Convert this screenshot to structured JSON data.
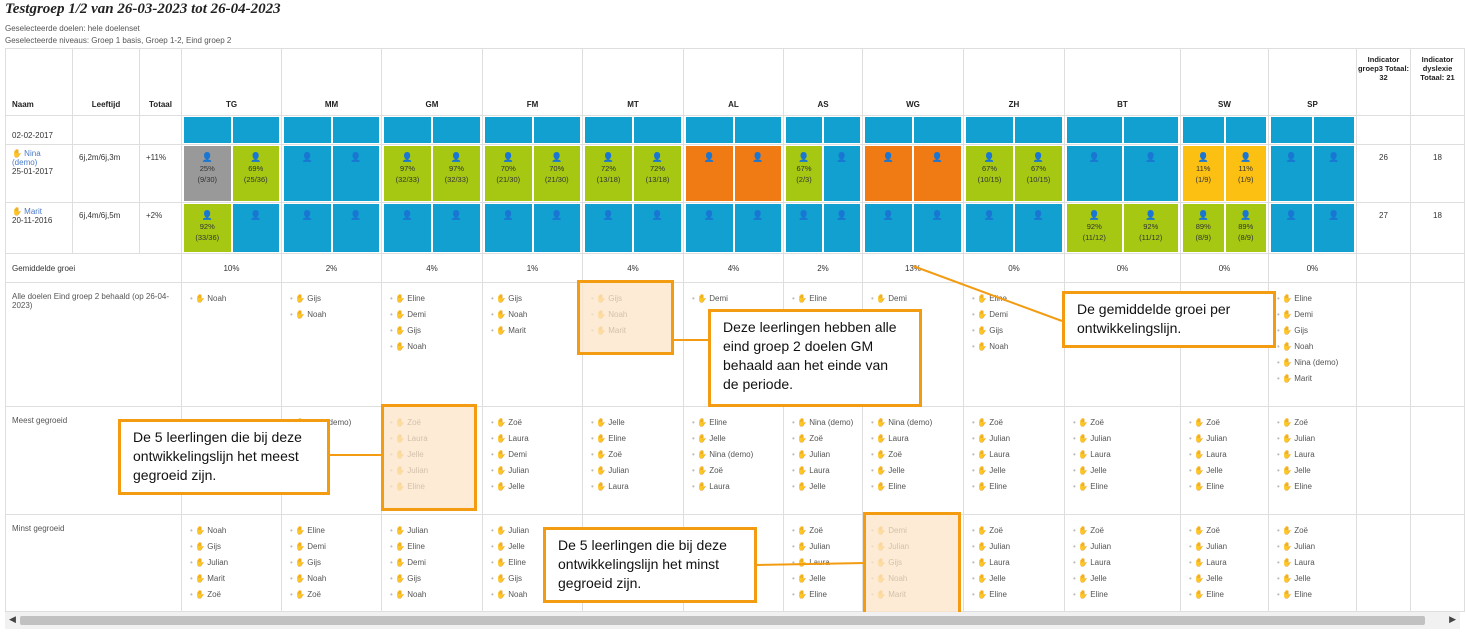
{
  "title": "Testgroep 1/2 van 26-03-2023 tot 26-04-2023",
  "subtitle1": "Geselecteerde doelen: hele doelenset",
  "subtitle2": "Geselecteerde niveaus: Groep 1 basis, Groep 1-2, Eind groep 2",
  "headers": {
    "naam": "Naam",
    "leeftijd": "Leeftijd",
    "totaal": "Totaal",
    "lines": [
      "TG",
      "MM",
      "GM",
      "FM",
      "MT",
      "AL",
      "AS",
      "WG",
      "ZH",
      "BT",
      "SW",
      "SP"
    ],
    "ind1": "Indicator groep3 Totaal: 32",
    "ind2": "Indicator dyslexie Totaal: 21"
  },
  "rows": [
    {
      "name": "",
      "date": "02-02-2017",
      "age": "",
      "total": "",
      "cells": [
        "b",
        "b",
        "b",
        "b",
        "b",
        "b",
        "b",
        "b",
        "b",
        "b",
        "b",
        "b",
        "b",
        "b",
        "b",
        "b",
        "b",
        "b",
        "b",
        "b",
        "b",
        "b",
        "b",
        "b"
      ],
      "i1": "",
      "i2": ""
    },
    {
      "name": "Nina (demo)",
      "date": "25-01-2017",
      "age": "6j,2m/6j,3m",
      "total": "+11%",
      "cells": [
        "gr:25%:(9/30)",
        "g:69%:(25/36)",
        "b",
        "b",
        "g:97%:(32/33)",
        "g:97%:(32/33)",
        "g:70%:(21/30)",
        "g:70%:(21/30)",
        "g:72%:(13/18)",
        "g:72%:(13/18)",
        "o:",
        "o:",
        "g:67%:(2/3)",
        "b",
        "o:",
        "o:",
        "g:67%:(10/15)",
        "g:67%:(10/15)",
        "b",
        "b",
        "y:11%:(1/9)",
        "y:11%:(1/9)",
        "b",
        "b"
      ],
      "i1": "26",
      "i2": "18"
    },
    {
      "name": "Marit",
      "date": "20-11-2016",
      "age": "6j,4m/6j,5m",
      "total": "+2%",
      "cells": [
        "g:92%:(33/36)",
        "b",
        "b",
        "b",
        "b",
        "b",
        "b",
        "b",
        "b",
        "b",
        "b",
        "b",
        "b",
        "b",
        "b",
        "b",
        "b",
        "b",
        "g:92%:(11/12)",
        "g:92%:(11/12)",
        "g:89%:(8/9)",
        "g:89%:(8/9)",
        "b",
        "b"
      ],
      "i1": "27",
      "i2": "18"
    }
  ],
  "growth_label": "Gemiddelde groei",
  "growth": [
    "10%",
    "2%",
    "4%",
    "1%",
    "4%",
    "4%",
    "2%",
    "13%",
    "0%",
    "0%",
    "0%",
    "0%"
  ],
  "achieved_label": "Alle doelen Eind groep 2 behaald (op 26-04-2023)",
  "achieved": [
    [
      "Noah"
    ],
    [
      "Gijs",
      "Noah"
    ],
    [
      "Eline",
      "Demi",
      "Gijs",
      "Noah"
    ],
    [
      "Gijs",
      "Noah",
      "Marit"
    ],
    [
      "Gijs",
      "Noah",
      "Marit"
    ],
    [
      "Demi"
    ],
    [
      "Eline"
    ],
    [
      "Demi"
    ],
    [
      "Eline",
      "Demi",
      "Gijs",
      "Noah"
    ],
    [],
    [],
    [
      "Eline",
      "Demi",
      "Gijs",
      "Noah",
      "Nina (demo)",
      "Marit"
    ]
  ],
  "most_label": "Meest gegroeid",
  "most": [
    [],
    [
      "Nina (demo)"
    ],
    [
      "Zoë",
      "Laura",
      "Jelle",
      "Julian",
      "Eline"
    ],
    [
      "Zoë",
      "Laura",
      "Demi",
      "Julian",
      "Jelle"
    ],
    [
      "Jelle",
      "Eline",
      "Zoë",
      "Julian",
      "Laura"
    ],
    [
      "Eline",
      "Jelle",
      "Nina (demo)",
      "Zoë",
      "Laura"
    ],
    [
      "Nina (demo)",
      "Zoë",
      "Julian",
      "Laura",
      "Jelle"
    ],
    [
      "Nina (demo)",
      "Laura",
      "Zoë",
      "Jelle",
      "Eline"
    ],
    [
      "Zoë",
      "Julian",
      "Laura",
      "Jelle",
      "Eline"
    ],
    [
      "Zoë",
      "Julian",
      "Laura",
      "Jelle",
      "Eline"
    ],
    [
      "Zoë",
      "Julian",
      "Laura",
      "Jelle",
      "Eline"
    ],
    [
      "Zoë",
      "Julian",
      "Laura",
      "Jelle",
      "Eline"
    ]
  ],
  "least_label": "Minst gegroeid",
  "least": [
    [
      "Noah",
      "Gijs",
      "Julian",
      "Marit",
      "Zoë"
    ],
    [
      "Eline",
      "Demi",
      "Gijs",
      "Noah",
      "Zoë"
    ],
    [
      "Julian",
      "Eline",
      "Demi",
      "Gijs",
      "Noah"
    ],
    [
      "Julian",
      "Jelle",
      "Eline",
      "Gijs",
      "Noah"
    ],
    [],
    [],
    [
      "Zoë",
      "Julian",
      "Laura",
      "Jelle",
      "Eline"
    ],
    [
      "Demi",
      "Julian",
      "Gijs",
      "Noah",
      "Marit"
    ],
    [
      "Zoë",
      "Julian",
      "Laura",
      "Jelle",
      "Eline"
    ],
    [
      "Zoë",
      "Julian",
      "Laura",
      "Jelle",
      "Eline"
    ],
    [
      "Zoë",
      "Julian",
      "Laura",
      "Jelle",
      "Eline"
    ],
    [
      "Zoë",
      "Julian",
      "Laura",
      "Jelle",
      "Eline"
    ]
  ],
  "callouts": {
    "growth": "De gemiddelde groei per ontwikkelingslijn.",
    "achieved": "Deze leerlingen hebben alle eind groep 2 doelen GM behaald aan het einde van de periode.",
    "most": "De 5 leerlingen die bij deze ontwikkelingslijn het meest gegroeid zijn.",
    "least": "De 5 leerlingen die bij deze ontwikkelingslijn het minst gegroeid zijn."
  },
  "colors": {
    "blue": "#11a0d0",
    "green": "#a6c813",
    "orange": "#f07a14",
    "yellow": "#fcc013",
    "accent": "#f39c12"
  }
}
